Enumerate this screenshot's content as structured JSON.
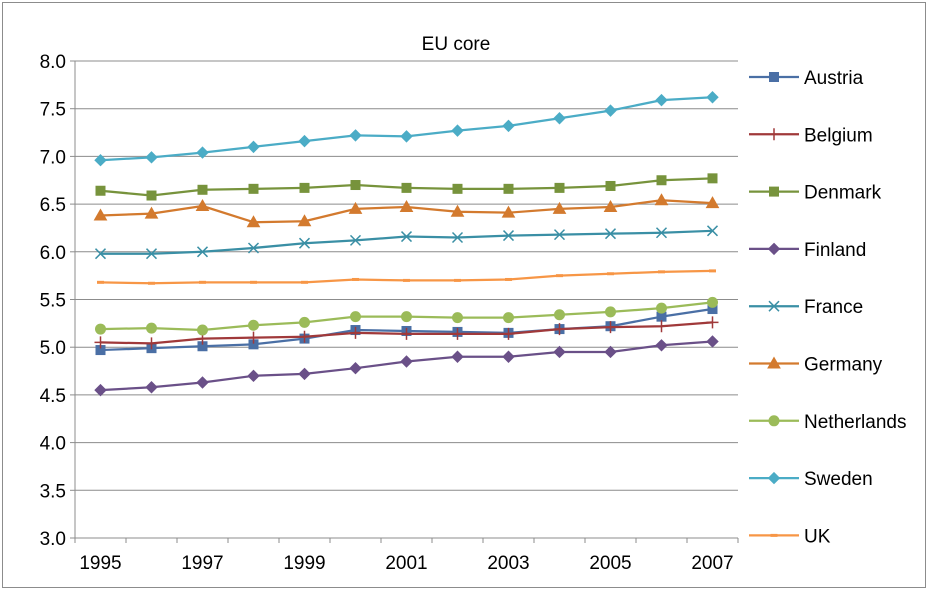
{
  "chart_data": {
    "type": "line",
    "title": "EU core",
    "xlabel": "",
    "ylabel": "",
    "ylim": [
      3.0,
      8.0
    ],
    "yticks": [
      "3.0",
      "3.5",
      "4.0",
      "4.5",
      "5.0",
      "5.5",
      "6.0",
      "6.5",
      "7.0",
      "7.5",
      "8.0"
    ],
    "x": [
      1995,
      1996,
      1997,
      1998,
      1999,
      2000,
      2001,
      2002,
      2003,
      2004,
      2005,
      2006,
      2007
    ],
    "xtick_labels": [
      "1995",
      "1997",
      "1999",
      "2001",
      "2003",
      "2005",
      "2007"
    ],
    "grid": "horizontal",
    "legend_position": "right",
    "series": [
      {
        "name": "Austria",
        "color": "#4a6fa5",
        "marker": "square",
        "values": [
          4.97,
          4.99,
          5.01,
          5.03,
          5.09,
          5.18,
          5.17,
          5.16,
          5.15,
          5.19,
          5.22,
          5.32,
          5.4
        ]
      },
      {
        "name": "Belgium",
        "color": "#a0393a",
        "marker": "plus",
        "values": [
          5.05,
          5.04,
          5.09,
          5.1,
          5.11,
          5.15,
          5.14,
          5.14,
          5.14,
          5.19,
          5.21,
          5.22,
          5.26
        ]
      },
      {
        "name": "Denmark",
        "color": "#77933c",
        "marker": "square",
        "values": [
          6.64,
          6.59,
          6.65,
          6.66,
          6.67,
          6.7,
          6.67,
          6.66,
          6.66,
          6.67,
          6.69,
          6.75,
          6.77
        ]
      },
      {
        "name": "Finland",
        "color": "#6a5088",
        "marker": "diamond",
        "values": [
          4.55,
          4.58,
          4.63,
          4.7,
          4.72,
          4.78,
          4.85,
          4.9,
          4.9,
          4.95,
          4.95,
          5.02,
          5.06
        ]
      },
      {
        "name": "France",
        "color": "#3a8fa5",
        "marker": "x",
        "values": [
          5.98,
          5.98,
          6.0,
          6.04,
          6.09,
          6.12,
          6.16,
          6.15,
          6.17,
          6.18,
          6.19,
          6.2,
          6.22
        ]
      },
      {
        "name": "Germany",
        "color": "#d37a2e",
        "marker": "triangle",
        "values": [
          6.38,
          6.4,
          6.48,
          6.31,
          6.32,
          6.45,
          6.47,
          6.42,
          6.41,
          6.45,
          6.47,
          6.54,
          6.51
        ]
      },
      {
        "name": "Netherlands",
        "color": "#9bbb59",
        "marker": "circle",
        "values": [
          5.19,
          5.2,
          5.18,
          5.23,
          5.26,
          5.32,
          5.32,
          5.31,
          5.31,
          5.34,
          5.37,
          5.41,
          5.47
        ]
      },
      {
        "name": "Sweden",
        "color": "#4bacc6",
        "marker": "diamond",
        "values": [
          6.96,
          6.99,
          7.04,
          7.1,
          7.16,
          7.22,
          7.21,
          7.27,
          7.32,
          7.4,
          7.48,
          7.59,
          7.62
        ]
      },
      {
        "name": "UK",
        "color": "#f79646",
        "marker": "dash",
        "values": [
          5.68,
          5.67,
          5.68,
          5.68,
          5.68,
          5.71,
          5.7,
          5.7,
          5.71,
          5.75,
          5.77,
          5.79,
          5.8
        ]
      }
    ]
  }
}
